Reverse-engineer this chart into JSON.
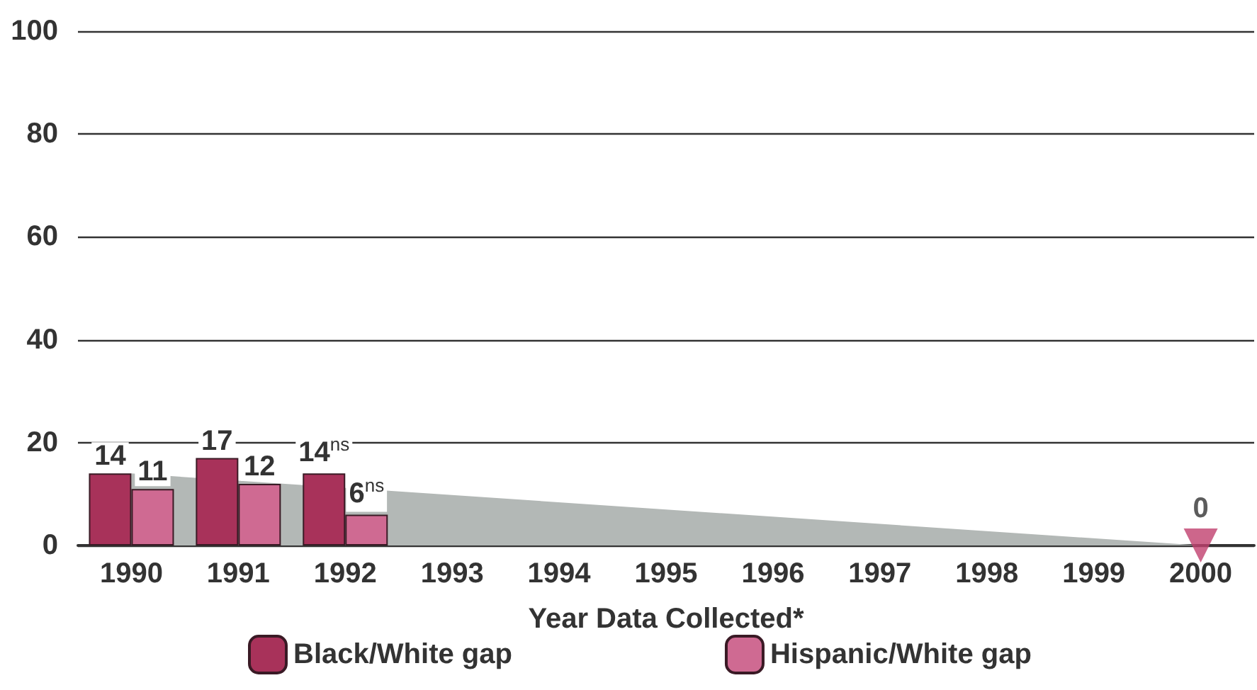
{
  "chart_data": {
    "type": "bar",
    "xlabel": "Year Data Collected*",
    "categories": [
      "1990",
      "1991",
      "1992",
      "1993",
      "1994",
      "1995",
      "1996",
      "1997",
      "1998",
      "1999",
      "2000"
    ],
    "series": [
      {
        "name": "Black/White gap",
        "color": "#a8325a",
        "values": [
          14,
          17,
          14,
          null,
          null,
          null,
          null,
          null,
          null,
          null,
          null
        ],
        "value_labels": [
          "14",
          "17",
          "14$^{ns}$",
          null,
          null,
          null,
          null,
          null,
          null,
          null,
          null
        ]
      },
      {
        "name": "Hispanic/White gap",
        "color": "#cf6a92",
        "values": [
          11,
          12,
          6,
          null,
          null,
          null,
          null,
          null,
          null,
          null,
          null
        ],
        "value_labels": [
          "11",
          "12",
          "6$^{ns}$",
          null,
          null,
          null,
          null,
          null,
          null,
          null,
          null
        ]
      },
      {
        "type": "area",
        "color": "#b3b8b6",
        "values": [
          14,
          null,
          null,
          null,
          null,
          null,
          null,
          null,
          null,
          null,
          0
        ]
      },
      {
        "type": "scatter",
        "color": "#c0406e",
        "marker": "triangle",
        "values": [
          null,
          null,
          null,
          null,
          null,
          null,
          null,
          null,
          null,
          null,
          0
        ],
        "value_labels": [
          null,
          null,
          null,
          null,
          null,
          null,
          null,
          null,
          null,
          null,
          "0"
        ]
      }
    ],
    "ylim": [
      0,
      100
    ],
    "yticks": [
      0,
      20,
      40,
      60,
      80,
      100
    ],
    "grid": "y",
    "legend": "bottom"
  }
}
